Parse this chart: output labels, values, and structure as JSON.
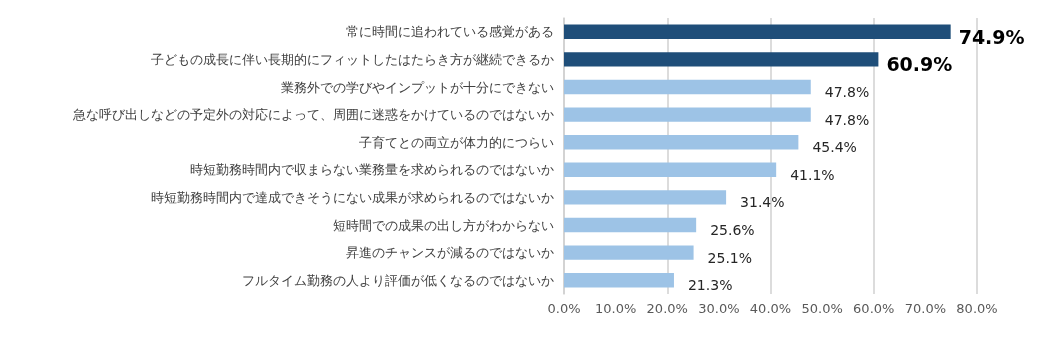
{
  "chart_data": {
    "type": "bar",
    "orientation": "horizontal",
    "categories": [
      "常に時間に追われている感覚がある",
      "子どもの成長に伴い長期的にフィットしたはたらき方が継続できるか",
      "業務外での学びやインプットが十分にできない",
      "急な呼び出しなどの予定外の対応によって、周囲に迷惑をかけているのではないか",
      "子育てとの両立が体力的につらい",
      "時短勤務時間内で収まらない業務量を求められるのではないか",
      "時短勤務時間内で達成できそうにない成果が求められるのではないか",
      "短時間での成果の出し方がわからない",
      "昇進のチャンスが減るのではないか",
      "フルタイム勤務の人より評価が低くなるのではないか"
    ],
    "values": [
      74.9,
      60.9,
      47.8,
      47.8,
      45.4,
      41.1,
      31.4,
      25.6,
      25.1,
      21.3
    ],
    "value_labels": [
      "74.9%",
      "60.9%",
      "47.8%",
      "47.8%",
      "45.4%",
      "41.1%",
      "31.4%",
      "25.6%",
      "25.1%",
      "21.3%"
    ],
    "colors": [
      "#1f4e79",
      "#1f4e79",
      "#9dc3e6",
      "#9dc3e6",
      "#9dc3e6",
      "#9dc3e6",
      "#9dc3e6",
      "#9dc3e6",
      "#9dc3e6",
      "#9dc3e6"
    ],
    "xlim": [
      0,
      80
    ],
    "xticks": [
      {
        "value": 0,
        "label": "0.0%"
      },
      {
        "value": 10,
        "label": "10.0%"
      },
      {
        "value": 20,
        "label": "20.0%"
      },
      {
        "value": 30,
        "label": "30.0%"
      },
      {
        "value": 40,
        "label": "40.0%"
      },
      {
        "value": 50,
        "label": "50.0%"
      },
      {
        "value": 60,
        "label": "60.0%"
      },
      {
        "value": 70,
        "label": "70.0%"
      },
      {
        "value": 80,
        "label": "80.0%"
      }
    ],
    "grid": "x"
  }
}
